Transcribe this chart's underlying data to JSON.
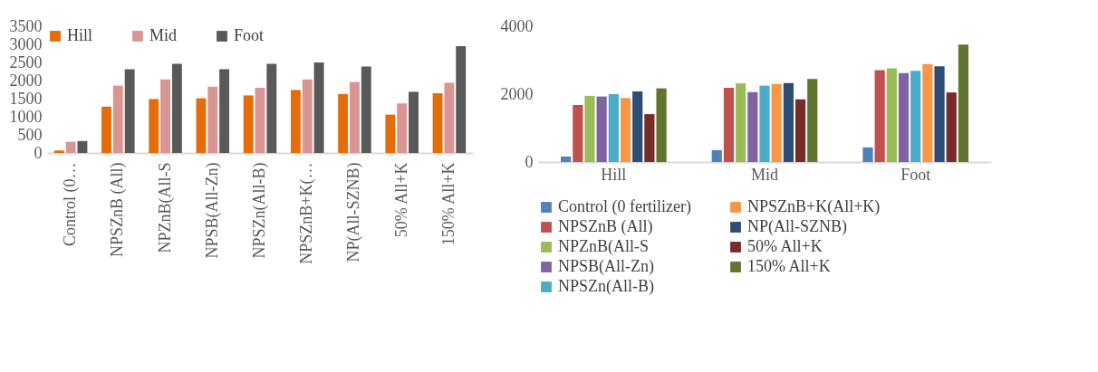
{
  "chart_data": [
    {
      "type": "bar",
      "categories": [
        "Control (0…",
        "NPSZnB (All)",
        "NPZnB(All-S",
        "NPSB(All-Zn)",
        "NPSZn(All-B)",
        "NPSZnB+K(…",
        "NP(All-SZNB)",
        "50% All+K",
        "150% All+K"
      ],
      "series": [
        {
          "name": "Hill",
          "color": "#e46c0a",
          "values": [
            70,
            1280,
            1490,
            1510,
            1590,
            1740,
            1630,
            1060,
            1650
          ]
        },
        {
          "name": "Mid",
          "color": "#d99594",
          "values": [
            310,
            1860,
            2030,
            1830,
            1800,
            2030,
            1960,
            1370,
            1940
          ]
        },
        {
          "name": "Foot",
          "color": "#595959",
          "values": [
            330,
            2310,
            2460,
            2310,
            2460,
            2500,
            2390,
            1690,
            2950
          ]
        }
      ],
      "ylim": [
        0,
        3500
      ],
      "yticks": [
        0,
        500,
        1000,
        1500,
        2000,
        2500,
        3000,
        3500
      ],
      "grid": false,
      "legend": "top"
    },
    {
      "type": "bar",
      "categories": [
        "Hill",
        "Mid",
        "Foot"
      ],
      "series": [
        {
          "name": "Control (0 fertilizer)",
          "color": "#4f81bd",
          "values": [
            160,
            350,
            430
          ]
        },
        {
          "name": "NPSZnB (All)",
          "color": "#c0504d",
          "values": [
            1680,
            2190,
            2710
          ]
        },
        {
          "name": "NPZnB(All-S",
          "color": "#9bbb59",
          "values": [
            1950,
            2320,
            2760
          ]
        },
        {
          "name": "NPSB(All-Zn)",
          "color": "#8064a2",
          "values": [
            1930,
            2060,
            2620
          ]
        },
        {
          "name": "NPSZn(All-B)",
          "color": "#4bacc6",
          "values": [
            2000,
            2250,
            2690
          ]
        },
        {
          "name": "NPSZnB+K(All+K)",
          "color": "#f79646",
          "values": [
            1890,
            2300,
            2890
          ]
        },
        {
          "name": "NP(All-SZNB)",
          "color": "#2c4d75",
          "values": [
            2080,
            2330,
            2820
          ]
        },
        {
          "name": "50% All+K",
          "color": "#772c2a",
          "values": [
            1410,
            1850,
            2050
          ]
        },
        {
          "name": "150% All+K",
          "color": "#5f7530",
          "values": [
            2170,
            2450,
            3460
          ]
        }
      ],
      "ylim": [
        0,
        4000
      ],
      "yticks": [
        0,
        2000,
        4000
      ],
      "grid": false,
      "legend": "bottom"
    }
  ]
}
